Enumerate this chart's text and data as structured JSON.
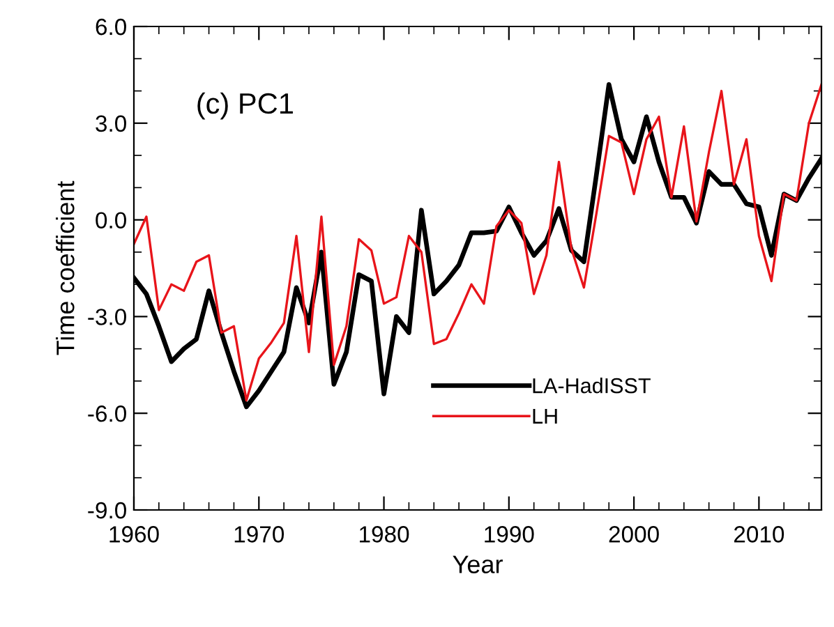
{
  "chart_data": {
    "type": "line",
    "title": "(c) PC1",
    "xlabel": "Year",
    "ylabel": "Time coefficient",
    "x": [
      1960,
      1961,
      1962,
      1963,
      1964,
      1965,
      1966,
      1967,
      1968,
      1969,
      1970,
      1971,
      1972,
      1973,
      1974,
      1975,
      1976,
      1977,
      1978,
      1979,
      1980,
      1981,
      1982,
      1983,
      1984,
      1985,
      1986,
      1987,
      1988,
      1989,
      1990,
      1991,
      1992,
      1993,
      1994,
      1995,
      1996,
      1997,
      1998,
      1999,
      2000,
      2001,
      2002,
      2003,
      2004,
      2005,
      2006,
      2007,
      2008,
      2009,
      2010,
      2011,
      2012,
      2013,
      2014,
      2015
    ],
    "series": [
      {
        "name": "LA-HadISST",
        "color": "#000000",
        "values": [
          -1.8,
          -2.3,
          -3.3,
          -4.4,
          -4.0,
          -3.7,
          -2.2,
          -3.5,
          -4.7,
          -5.8,
          -5.3,
          -4.7,
          -4.1,
          -2.1,
          -3.2,
          -1.0,
          -5.1,
          -4.1,
          -1.7,
          -1.9,
          -5.4,
          -3.0,
          -3.5,
          0.3,
          -2.3,
          -1.9,
          -1.4,
          -0.4,
          -0.4,
          -0.35,
          0.4,
          -0.4,
          -1.1,
          -0.65,
          0.35,
          -0.95,
          -1.3,
          1.4,
          4.2,
          2.5,
          1.8,
          3.2,
          1.8,
          0.7,
          0.7,
          -0.1,
          1.5,
          1.1,
          1.1,
          0.5,
          0.4,
          -1.1,
          0.8,
          0.6,
          1.3,
          1.9
        ]
      },
      {
        "name": "LH",
        "color": "#e8141a",
        "values": [
          -0.75,
          0.1,
          -2.8,
          -2.0,
          -2.2,
          -1.3,
          -1.1,
          -3.5,
          -3.3,
          -5.6,
          -4.3,
          -3.8,
          -3.2,
          -0.5,
          -4.1,
          0.1,
          -4.5,
          -3.3,
          -0.6,
          -0.95,
          -2.6,
          -2.4,
          -0.5,
          -1.0,
          -3.85,
          -3.7,
          -2.9,
          -2.0,
          -2.6,
          -0.2,
          0.3,
          -0.1,
          -2.3,
          -1.1,
          1.8,
          -0.9,
          -2.1,
          0.2,
          2.6,
          2.4,
          0.8,
          2.5,
          3.2,
          0.7,
          2.9,
          -0.05,
          2.1,
          4.0,
          1.1,
          2.5,
          -0.5,
          -1.9,
          0.8,
          0.6,
          3.0,
          4.2
        ]
      }
    ],
    "xlim": [
      1960,
      2015
    ],
    "xticks": [
      1960,
      1970,
      1980,
      1990,
      2000,
      2010
    ],
    "ylim": [
      -9.0,
      6.0
    ],
    "yticks": [
      {
        "value": -9,
        "label": "-9.0"
      },
      {
        "value": -6,
        "label": "-6.0"
      },
      {
        "value": -3,
        "label": "-3.0"
      },
      {
        "value": 0,
        "label": "0.0"
      },
      {
        "value": 3,
        "label": "3.0"
      },
      {
        "value": 6,
        "label": "6.0"
      }
    ],
    "legend": "lower right",
    "grid": false,
    "marker": "none",
    "line_style": "solid"
  }
}
